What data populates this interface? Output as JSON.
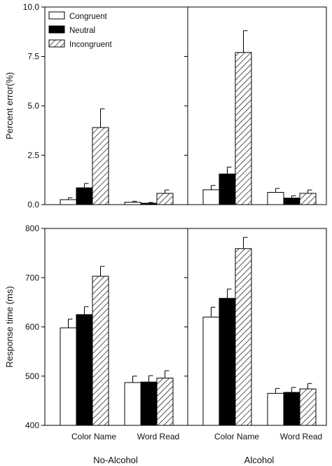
{
  "chart_data": [
    {
      "type": "bar",
      "ylabel": "Percent error(%)",
      "ylim": [
        0,
        10
      ],
      "yticks": [
        "0.0",
        "2.5",
        "5.0",
        "7.5",
        "10.0"
      ],
      "legend_position": "top-left",
      "series_order": [
        "Congruent",
        "Neutral",
        "Incongruent"
      ],
      "panels": [
        {
          "group": "No-Alcohol",
          "categories": [
            "Color Name",
            "Word Read"
          ],
          "series": [
            {
              "name": "Congruent",
              "values": [
                0.25,
                0.12
              ],
              "errors": [
                0.1,
                0.05
              ]
            },
            {
              "name": "Neutral",
              "values": [
                0.85,
                0.07
              ],
              "errors": [
                0.22,
                0.04
              ]
            },
            {
              "name": "Incongruent",
              "values": [
                3.9,
                0.57
              ],
              "errors": [
                0.95,
                0.17
              ]
            }
          ]
        },
        {
          "group": "Alcohol",
          "categories": [
            "Color Name",
            "Word Read"
          ],
          "series": [
            {
              "name": "Congruent",
              "values": [
                0.75,
                0.62
              ],
              "errors": [
                0.22,
                0.2
              ]
            },
            {
              "name": "Neutral",
              "values": [
                1.55,
                0.33
              ],
              "errors": [
                0.35,
                0.12
              ]
            },
            {
              "name": "Incongruent",
              "values": [
                7.7,
                0.57
              ],
              "errors": [
                1.1,
                0.17
              ]
            }
          ]
        }
      ]
    },
    {
      "type": "bar",
      "ylabel": "Response time (ms)",
      "ylim": [
        400,
        800
      ],
      "yticks": [
        "400",
        "500",
        "600",
        "700",
        "800"
      ],
      "series_order": [
        "Congruent",
        "Neutral",
        "Incongruent"
      ],
      "panels": [
        {
          "group": "No-Alcohol",
          "categories": [
            "Color Name",
            "Word Read"
          ],
          "series": [
            {
              "name": "Congruent",
              "values": [
                598,
                487
              ],
              "errors": [
                18,
                13
              ]
            },
            {
              "name": "Neutral",
              "values": [
                625,
                488
              ],
              "errors": [
                16,
                13
              ]
            },
            {
              "name": "Incongruent",
              "values": [
                703,
                496
              ],
              "errors": [
                20,
                15
              ]
            }
          ]
        },
        {
          "group": "Alcohol",
          "categories": [
            "Color Name",
            "Word Read"
          ],
          "series": [
            {
              "name": "Congruent",
              "values": [
                620,
                465
              ],
              "errors": [
                20,
                10
              ]
            },
            {
              "name": "Neutral",
              "values": [
                658,
                467
              ],
              "errors": [
                19,
                10
              ]
            },
            {
              "name": "Incongruent",
              "values": [
                759,
                474
              ],
              "errors": [
                23,
                11
              ]
            }
          ]
        }
      ]
    }
  ],
  "legend": [
    "Congruent",
    "Neutral",
    "Incongruent"
  ],
  "group_labels": [
    "No-Alcohol",
    "Alcohol"
  ],
  "colors": {
    "Congruent": "#ffffff",
    "Neutral": "#000000",
    "Incongruent": "hatch"
  }
}
